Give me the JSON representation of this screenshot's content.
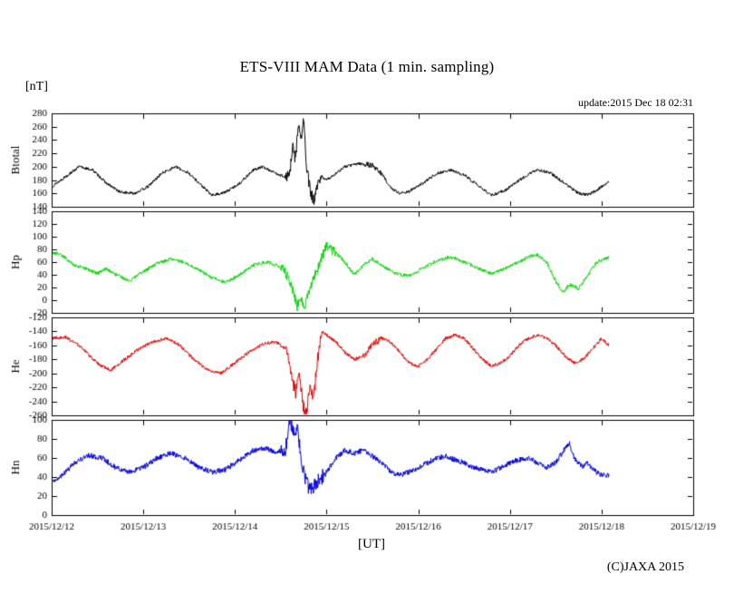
{
  "header": {
    "title": "ETS-VIII MAM Data (1 min. sampling)",
    "unit_label": "[nT]",
    "update_label": "update:2015 Dec 18 02:31"
  },
  "footer": {
    "xaxis_label": "[UT]",
    "copyright": "(C)JAXA 2015"
  },
  "chart_data": {
    "type": "line",
    "title": "ETS-VIII MAM Data (1 min. sampling)",
    "y_unit": "nT",
    "x_unit": "UT, days from 2015/12/12 00:00",
    "xlim": [
      0,
      7
    ],
    "x_tick_values": [
      0,
      1,
      2,
      3,
      4,
      5,
      6,
      7
    ],
    "x_tick_labels": [
      "2015/12/12",
      "2015/12/13",
      "2015/12/14",
      "2015/12/15",
      "2015/12/16",
      "2015/12/17",
      "2015/12/18",
      "2015/12/19"
    ],
    "data_end": 6.08,
    "grid": false,
    "legend": "none",
    "panels": [
      {
        "name": "Btotal",
        "color": "#000000",
        "ylim": [
          140,
          280
        ],
        "yticks": [
          140,
          160,
          180,
          200,
          220,
          240,
          260,
          280
        ],
        "noise": 2.2,
        "bursts": [
          [
            2.55,
            2.95,
            9
          ],
          [
            3.4,
            3.6,
            4
          ]
        ],
        "points": [
          [
            0,
            170
          ],
          [
            0.15,
            185
          ],
          [
            0.3,
            200
          ],
          [
            0.45,
            195
          ],
          [
            0.6,
            175
          ],
          [
            0.75,
            162
          ],
          [
            0.9,
            160
          ],
          [
            1.05,
            170
          ],
          [
            1.2,
            190
          ],
          [
            1.35,
            200
          ],
          [
            1.5,
            190
          ],
          [
            1.65,
            170
          ],
          [
            1.75,
            157
          ],
          [
            1.9,
            162
          ],
          [
            2.05,
            175
          ],
          [
            2.2,
            195
          ],
          [
            2.3,
            200
          ],
          [
            2.45,
            190
          ],
          [
            2.55,
            185
          ],
          [
            2.6,
            190
          ],
          [
            2.63,
            230
          ],
          [
            2.66,
            210
          ],
          [
            2.69,
            265
          ],
          [
            2.72,
            240
          ],
          [
            2.75,
            272
          ],
          [
            2.78,
            200
          ],
          [
            2.82,
            165
          ],
          [
            2.86,
            148
          ],
          [
            2.9,
            170
          ],
          [
            2.95,
            185
          ],
          [
            3.0,
            180
          ],
          [
            3.1,
            190
          ],
          [
            3.2,
            200
          ],
          [
            3.35,
            205
          ],
          [
            3.5,
            202
          ],
          [
            3.6,
            190
          ],
          [
            3.7,
            168
          ],
          [
            3.8,
            160
          ],
          [
            3.9,
            163
          ],
          [
            4.05,
            175
          ],
          [
            4.2,
            190
          ],
          [
            4.35,
            195
          ],
          [
            4.5,
            188
          ],
          [
            4.65,
            172
          ],
          [
            4.8,
            157
          ],
          [
            4.95,
            165
          ],
          [
            5.1,
            180
          ],
          [
            5.3,
            196
          ],
          [
            5.45,
            190
          ],
          [
            5.6,
            175
          ],
          [
            5.75,
            160
          ],
          [
            5.85,
            158
          ],
          [
            5.95,
            165
          ],
          [
            6.08,
            178
          ]
        ]
      },
      {
        "name": "Hp",
        "color": "#00d400",
        "ylim": [
          -20,
          140
        ],
        "yticks": [
          -20,
          0,
          20,
          40,
          60,
          80,
          100,
          120,
          140
        ],
        "noise": 2.8,
        "bursts": [
          [
            2.5,
            3.1,
            8
          ]
        ],
        "points": [
          [
            0,
            75
          ],
          [
            0.1,
            72
          ],
          [
            0.25,
            55
          ],
          [
            0.4,
            48
          ],
          [
            0.5,
            42
          ],
          [
            0.6,
            50
          ],
          [
            0.7,
            40
          ],
          [
            0.85,
            30
          ],
          [
            1.0,
            45
          ],
          [
            1.15,
            58
          ],
          [
            1.3,
            65
          ],
          [
            1.45,
            60
          ],
          [
            1.6,
            48
          ],
          [
            1.75,
            35
          ],
          [
            1.9,
            28
          ],
          [
            2.05,
            40
          ],
          [
            2.2,
            55
          ],
          [
            2.35,
            60
          ],
          [
            2.45,
            55
          ],
          [
            2.55,
            45
          ],
          [
            2.62,
            20
          ],
          [
            2.68,
            -10
          ],
          [
            2.72,
            5
          ],
          [
            2.76,
            -15
          ],
          [
            2.8,
            10
          ],
          [
            2.85,
            30
          ],
          [
            2.9,
            50
          ],
          [
            2.95,
            70
          ],
          [
            3.0,
            85
          ],
          [
            3.05,
            80
          ],
          [
            3.1,
            75
          ],
          [
            3.2,
            60
          ],
          [
            3.3,
            40
          ],
          [
            3.4,
            55
          ],
          [
            3.5,
            65
          ],
          [
            3.6,
            55
          ],
          [
            3.75,
            42
          ],
          [
            3.9,
            38
          ],
          [
            4.05,
            50
          ],
          [
            4.2,
            62
          ],
          [
            4.35,
            68
          ],
          [
            4.5,
            60
          ],
          [
            4.65,
            50
          ],
          [
            4.8,
            42
          ],
          [
            4.95,
            50
          ],
          [
            5.1,
            60
          ],
          [
            5.2,
            68
          ],
          [
            5.3,
            72
          ],
          [
            5.4,
            60
          ],
          [
            5.5,
            30
          ],
          [
            5.58,
            12
          ],
          [
            5.65,
            25
          ],
          [
            5.75,
            18
          ],
          [
            5.85,
            40
          ],
          [
            5.95,
            60
          ],
          [
            6.08,
            68
          ]
        ]
      },
      {
        "name": "He",
        "color": "#e00000",
        "ylim": [
          -260,
          -120
        ],
        "yticks": [
          -260,
          -240,
          -220,
          -200,
          -180,
          -160,
          -140,
          -120
        ],
        "noise": 2.4,
        "bursts": [
          [
            2.55,
            2.95,
            10
          ],
          [
            3.4,
            3.6,
            5
          ]
        ],
        "points": [
          [
            0,
            -150
          ],
          [
            0.15,
            -148
          ],
          [
            0.3,
            -160
          ],
          [
            0.45,
            -180
          ],
          [
            0.55,
            -190
          ],
          [
            0.65,
            -195
          ],
          [
            0.8,
            -180
          ],
          [
            0.95,
            -165
          ],
          [
            1.1,
            -155
          ],
          [
            1.25,
            -150
          ],
          [
            1.4,
            -160
          ],
          [
            1.55,
            -180
          ],
          [
            1.7,
            -195
          ],
          [
            1.85,
            -200
          ],
          [
            2.0,
            -185
          ],
          [
            2.15,
            -170
          ],
          [
            2.3,
            -158
          ],
          [
            2.45,
            -155
          ],
          [
            2.55,
            -165
          ],
          [
            2.62,
            -200
          ],
          [
            2.66,
            -230
          ],
          [
            2.7,
            -200
          ],
          [
            2.74,
            -245
          ],
          [
            2.78,
            -256
          ],
          [
            2.82,
            -215
          ],
          [
            2.86,
            -235
          ],
          [
            2.9,
            -180
          ],
          [
            2.95,
            -140
          ],
          [
            3.0,
            -145
          ],
          [
            3.1,
            -155
          ],
          [
            3.2,
            -170
          ],
          [
            3.3,
            -180
          ],
          [
            3.4,
            -175
          ],
          [
            3.5,
            -158
          ],
          [
            3.6,
            -150
          ],
          [
            3.7,
            -155
          ],
          [
            3.8,
            -170
          ],
          [
            3.9,
            -185
          ],
          [
            4.0,
            -190
          ],
          [
            4.1,
            -180
          ],
          [
            4.2,
            -165
          ],
          [
            4.3,
            -150
          ],
          [
            4.4,
            -145
          ],
          [
            4.5,
            -150
          ],
          [
            4.6,
            -165
          ],
          [
            4.7,
            -180
          ],
          [
            4.8,
            -190
          ],
          [
            4.9,
            -185
          ],
          [
            5.0,
            -175
          ],
          [
            5.1,
            -160
          ],
          [
            5.2,
            -150
          ],
          [
            5.3,
            -145
          ],
          [
            5.4,
            -150
          ],
          [
            5.5,
            -160
          ],
          [
            5.6,
            -175
          ],
          [
            5.7,
            -185
          ],
          [
            5.8,
            -180
          ],
          [
            5.9,
            -165
          ],
          [
            6.0,
            -150
          ],
          [
            6.08,
            -160
          ]
        ]
      },
      {
        "name": "Hn",
        "color": "#0000dd",
        "ylim": [
          0,
          100
        ],
        "yticks": [
          0,
          20,
          40,
          60,
          80,
          100
        ],
        "noise": 2.8,
        "bursts": [
          [
            2.5,
            3.0,
            8
          ]
        ],
        "points": [
          [
            0,
            35
          ],
          [
            0.1,
            40
          ],
          [
            0.25,
            55
          ],
          [
            0.4,
            63
          ],
          [
            0.55,
            60
          ],
          [
            0.7,
            50
          ],
          [
            0.85,
            45
          ],
          [
            1.0,
            50
          ],
          [
            1.15,
            60
          ],
          [
            1.3,
            65
          ],
          [
            1.45,
            60
          ],
          [
            1.6,
            50
          ],
          [
            1.75,
            45
          ],
          [
            1.9,
            48
          ],
          [
            2.05,
            58
          ],
          [
            2.2,
            68
          ],
          [
            2.35,
            70
          ],
          [
            2.45,
            65
          ],
          [
            2.55,
            70
          ],
          [
            2.6,
            100
          ],
          [
            2.64,
            85
          ],
          [
            2.68,
            95
          ],
          [
            2.72,
            60
          ],
          [
            2.76,
            40
          ],
          [
            2.8,
            30
          ],
          [
            2.85,
            28
          ],
          [
            2.9,
            35
          ],
          [
            2.95,
            40
          ],
          [
            3.0,
            45
          ],
          [
            3.1,
            60
          ],
          [
            3.2,
            68
          ],
          [
            3.3,
            65
          ],
          [
            3.4,
            68
          ],
          [
            3.5,
            62
          ],
          [
            3.6,
            55
          ],
          [
            3.7,
            45
          ],
          [
            3.8,
            42
          ],
          [
            3.9,
            45
          ],
          [
            4.0,
            50
          ],
          [
            4.1,
            55
          ],
          [
            4.2,
            60
          ],
          [
            4.3,
            62
          ],
          [
            4.4,
            58
          ],
          [
            4.5,
            55
          ],
          [
            4.6,
            50
          ],
          [
            4.7,
            48
          ],
          [
            4.8,
            45
          ],
          [
            4.9,
            50
          ],
          [
            5.0,
            55
          ],
          [
            5.1,
            58
          ],
          [
            5.2,
            60
          ],
          [
            5.3,
            55
          ],
          [
            5.4,
            50
          ],
          [
            5.5,
            55
          ],
          [
            5.6,
            70
          ],
          [
            5.65,
            75
          ],
          [
            5.7,
            60
          ],
          [
            5.8,
            50
          ],
          [
            5.85,
            55
          ],
          [
            5.9,
            48
          ],
          [
            6.0,
            42
          ],
          [
            6.08,
            42
          ]
        ]
      }
    ]
  }
}
